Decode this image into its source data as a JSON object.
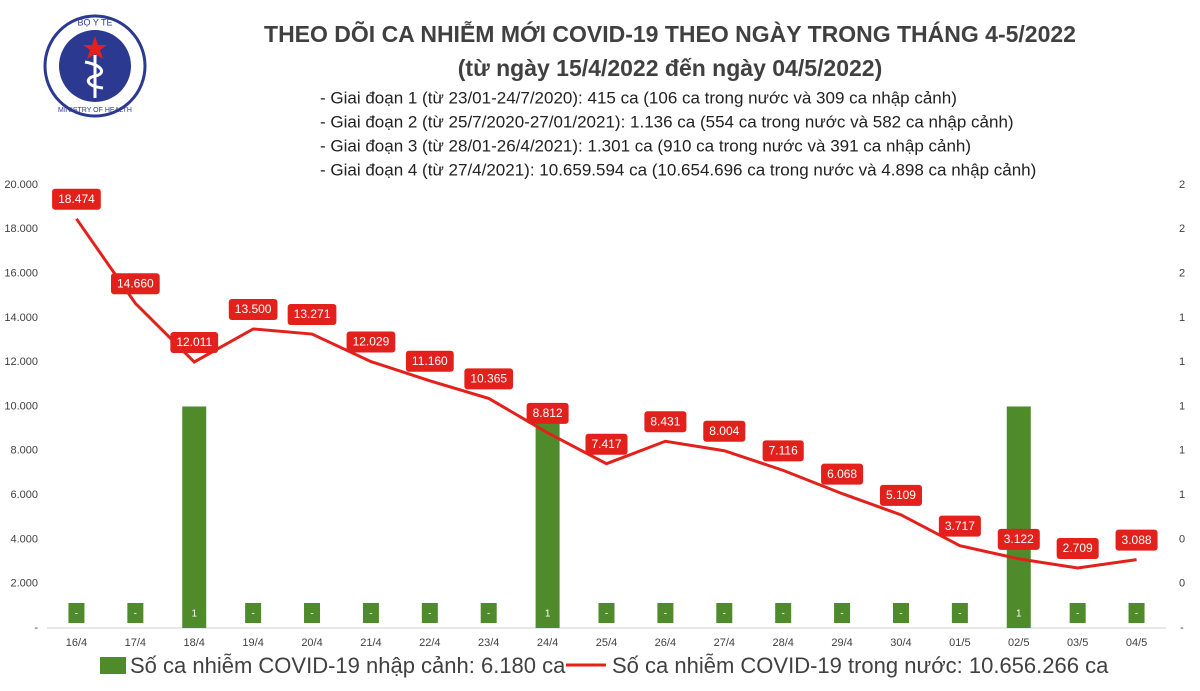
{
  "logo": {
    "top": "BỘ Y TẾ",
    "bottom": "MINISTRY OF HEALTH"
  },
  "chart_data": {
    "type": "bar-line",
    "title": "THEO DÕI CA NHIỄM MỚI COVID-19 THEO NGÀY TRONG THÁNG 4-5/2022",
    "subtitle": "(từ ngày 15/4/2022 đến ngày 04/5/2022)",
    "notes": [
      "- Giai đoạn 1 (từ 23/01-24/7/2020): 415 ca (106 ca trong nước và 309 ca nhập cảnh)",
      "- Giai đoạn 2 (từ 25/7/2020-27/01/2021): 1.136 ca (554 ca trong nước và 582 ca nhập cảnh)",
      "- Giai đoạn 3 (từ 28/01-26/4/2021): 1.301 ca (910 ca trong nước và 391 ca nhập cảnh)",
      "- Giai đoạn 4 (từ 27/4/2021): 10.659.594 ca (10.654.696 ca trong nước và 4.898 ca nhập cảnh)"
    ],
    "categories": [
      "16/4",
      "17/4",
      "18/4",
      "19/4",
      "20/4",
      "21/4",
      "22/4",
      "23/4",
      "24/4",
      "25/4",
      "26/4",
      "27/4",
      "28/4",
      "29/4",
      "30/4",
      "01/5",
      "02/5",
      "03/5",
      "04/5"
    ],
    "series": [
      {
        "name": "Số ca nhiễm COVID-19 nhập cảnh: 6.180 ca",
        "type": "bar",
        "axis": "y2",
        "color": "#4f8a2b",
        "values": [
          0,
          0,
          1,
          0,
          0,
          0,
          0,
          0,
          1,
          0,
          0,
          0,
          0,
          0,
          0,
          0,
          1,
          0,
          0
        ],
        "value_labels": [
          "-",
          "-",
          "1",
          "-",
          "-",
          "-",
          "-",
          "-",
          "1",
          "-",
          "-",
          "-",
          "-",
          "-",
          "-",
          "-",
          "1",
          "-",
          "-"
        ]
      },
      {
        "name": "Số ca nhiễm COVID-19 trong nước: 10.656.266 ca",
        "type": "line",
        "color": "#e3211c",
        "values": [
          18474,
          14660,
          12011,
          13500,
          13271,
          12029,
          11160,
          10365,
          8812,
          7417,
          8431,
          8004,
          7116,
          6068,
          5109,
          3717,
          3122,
          2709,
          3088
        ],
        "value_labels": [
          "18.474",
          "14.660",
          "12.011",
          "13.500",
          "13.271",
          "12.029",
          "11.160",
          "10.365",
          "8.812",
          "7.417",
          "8.431",
          "8.004",
          "7.116",
          "6.068",
          "5.109",
          "3.717",
          "3.122",
          "2.709",
          "3.088"
        ]
      }
    ],
    "ylim": [
      0,
      20000
    ],
    "yticks": [
      {
        "value": 0,
        "label": "-"
      },
      {
        "value": 2000,
        "label": "2.000"
      },
      {
        "value": 4000,
        "label": "4.000"
      },
      {
        "value": 6000,
        "label": "6.000"
      },
      {
        "value": 8000,
        "label": "8.000"
      },
      {
        "value": 10000,
        "label": "10.000"
      },
      {
        "value": 12000,
        "label": "12.000"
      },
      {
        "value": 14000,
        "label": "14.000"
      },
      {
        "value": 16000,
        "label": "16.000"
      },
      {
        "value": 18000,
        "label": "18.000"
      },
      {
        "value": 20000,
        "label": "20.000"
      }
    ],
    "y2lim": [
      0,
      2
    ],
    "y2ticks": [
      {
        "value": 0,
        "label": "-"
      },
      {
        "value": 0.2,
        "label": "0"
      },
      {
        "value": 0.4,
        "label": "0"
      },
      {
        "value": 0.6,
        "label": "1"
      },
      {
        "value": 0.8,
        "label": "1"
      },
      {
        "value": 1,
        "label": "1"
      },
      {
        "value": 1.2,
        "label": "1"
      },
      {
        "value": 1.4,
        "label": "1"
      },
      {
        "value": 1.6,
        "label": "2"
      },
      {
        "value": 1.8,
        "label": "2"
      },
      2
    ],
    "grid": false
  }
}
